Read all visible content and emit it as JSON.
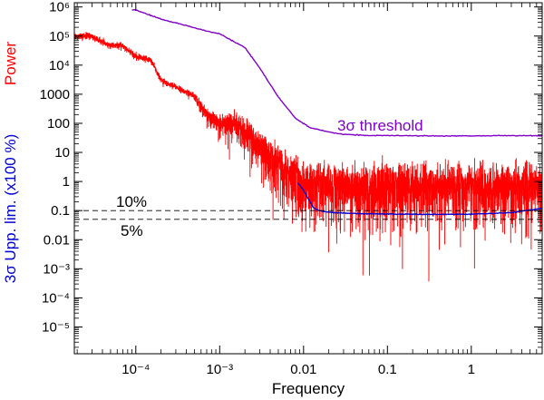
{
  "chart_data": {
    "type": "line",
    "x_scale": "log",
    "y_scale": "log",
    "xlabel": "Frequency",
    "ylabel_top": "Power",
    "ylabel_bottom": "3σ Upp. lim. (x100 %)",
    "xlim": [
      1.85e-05,
      7
    ],
    "ylim": [
      1.2e-06,
      1400000
    ],
    "x_ticks": [
      {
        "value": 0.0001,
        "label": "10⁻⁴"
      },
      {
        "value": 0.001,
        "label": "10⁻³"
      },
      {
        "value": 0.01,
        "label": "0.01"
      },
      {
        "value": 0.1,
        "label": "0.1"
      },
      {
        "value": 1,
        "label": "1"
      }
    ],
    "y_ticks": [
      {
        "value": 1000000,
        "label": "10⁶"
      },
      {
        "value": 100000,
        "label": "10⁵"
      },
      {
        "value": 10000,
        "label": "10⁴"
      },
      {
        "value": 1000,
        "label": "1000"
      },
      {
        "value": 100,
        "label": "100"
      },
      {
        "value": 10,
        "label": "10"
      },
      {
        "value": 1,
        "label": "1"
      },
      {
        "value": 0.1,
        "label": "0.1"
      },
      {
        "value": 0.01,
        "label": "0.01"
      },
      {
        "value": 0.001,
        "label": "10⁻³"
      },
      {
        "value": 0.0001,
        "label": "10⁻⁴"
      },
      {
        "value": 1e-05,
        "label": "10⁻⁵"
      }
    ],
    "series": [
      {
        "name": "Power",
        "color": "#ff0000",
        "style": "step-noisy",
        "x": [
          1.85e-05,
          3e-05,
          4.5e-05,
          7e-05,
          0.0001,
          0.00015,
          0.0002,
          0.0003,
          0.0005,
          0.0007,
          0.001,
          0.0015,
          0.002,
          0.003,
          0.005,
          0.008,
          0.01,
          0.015,
          0.02,
          0.05,
          0.1,
          0.5,
          1,
          7
        ],
        "y": [
          100000,
          100000,
          50000,
          45000,
          20000,
          15000,
          3000,
          1800,
          800,
          200,
          90,
          90,
          50,
          12,
          3,
          1,
          0.7,
          0.6,
          0.5,
          0.5,
          0.5,
          0.5,
          0.5,
          0.5
        ]
      },
      {
        "name": "3σ threshold",
        "color": "#8000c8",
        "style": "line",
        "x": [
          9e-05,
          0.0001,
          0.0002,
          0.0004,
          0.0007,
          0.001,
          0.002,
          0.003,
          0.005,
          0.008,
          0.012,
          0.02,
          0.03,
          0.06,
          0.1,
          0.3,
          1,
          3,
          7
        ],
        "y": [
          800000,
          780000,
          380000,
          230000,
          150000,
          120000,
          40000,
          8000,
          800,
          150,
          70,
          50,
          42,
          38,
          38,
          37,
          37,
          38,
          37
        ]
      },
      {
        "name": "3σ upper limit",
        "color": "#0000d0",
        "style": "line",
        "x": [
          0.0085,
          0.009,
          0.01,
          0.011,
          0.012,
          0.013,
          0.015,
          0.02,
          0.03,
          0.05,
          0.1,
          0.3,
          1,
          3,
          7
        ],
        "y": [
          0.9,
          0.75,
          0.5,
          0.3,
          0.2,
          0.13,
          0.1,
          0.088,
          0.082,
          0.078,
          0.076,
          0.074,
          0.075,
          0.085,
          0.12
        ]
      }
    ],
    "reference_lines": [
      {
        "y": 0.1,
        "label": "10%"
      },
      {
        "y": 0.05,
        "label": "5%"
      }
    ],
    "annotations": [
      {
        "text": "3σ threshold",
        "color": "#8000c8"
      }
    ]
  }
}
